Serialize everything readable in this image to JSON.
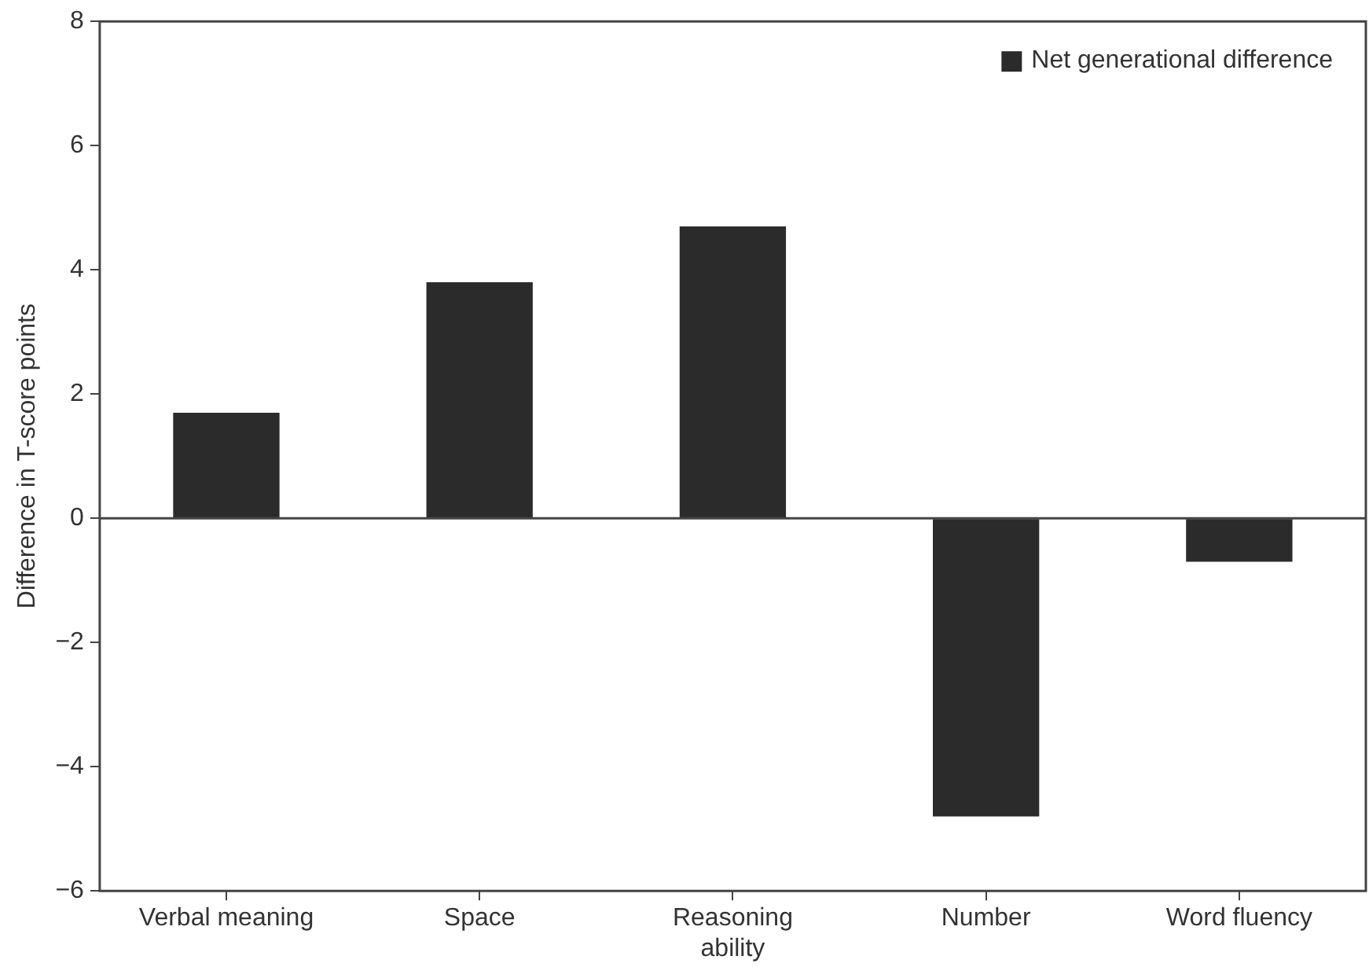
{
  "chart_data": {
    "type": "bar",
    "ylabel": "Difference in T-score points",
    "categories": [
      "Verbal meaning",
      "Space",
      "Reasoning\nability",
      "Number",
      "Word fluency"
    ],
    "series": [
      {
        "name": "Net generational difference",
        "color": "#2b2b2b",
        "values": [
          1.7,
          3.8,
          4.7,
          -4.8,
          -0.7
        ]
      }
    ],
    "ylim": [
      -6,
      8
    ],
    "yticks": [
      -6,
      -4,
      -2,
      0,
      2,
      4,
      6,
      8
    ],
    "grid": false,
    "legend": "top right",
    "ref_lines": [
      {
        "axis": "y",
        "value": 0,
        "color": "#444444"
      }
    ]
  }
}
